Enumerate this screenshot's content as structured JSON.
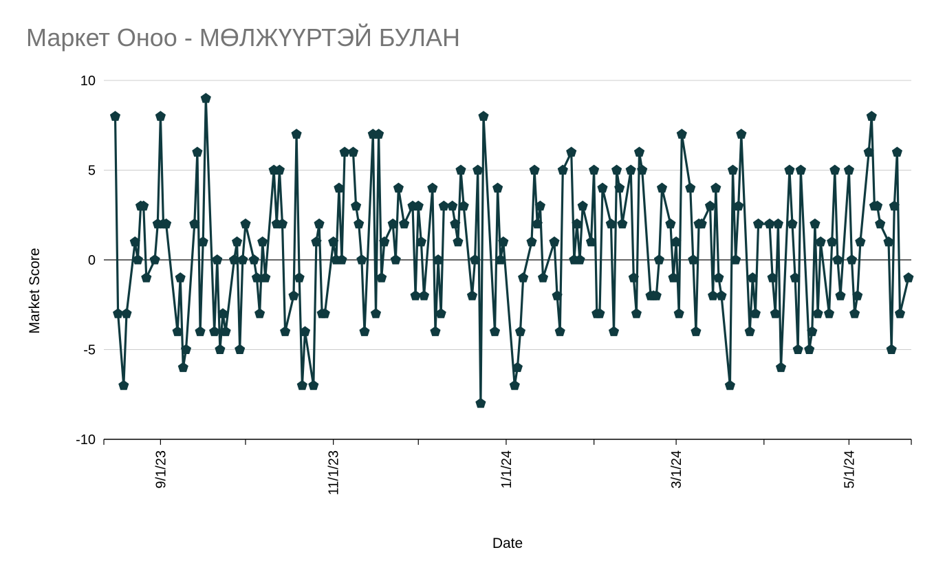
{
  "chart_data": {
    "type": "line",
    "title": "Маркет Оноо - МӨЛЖҮҮРТЭЙ БУЛАН",
    "xlabel": "Date",
    "ylabel": "Market Score",
    "ylim": [
      -10,
      10
    ],
    "xlim": [
      "2023-08-12",
      "2024-05-23"
    ],
    "yticks": [
      10,
      5,
      0,
      -5,
      -10
    ],
    "ytick_labels": [
      "10",
      "5",
      "0",
      "-5",
      "-10"
    ],
    "xticks": [
      {
        "date": "2023-09-01",
        "label": "9/1/23"
      },
      {
        "date": "2023-11-01",
        "label": "11/1/23"
      },
      {
        "date": "2024-01-01",
        "label": "1/1/24"
      },
      {
        "date": "2024-03-01",
        "label": "3/1/24"
      },
      {
        "date": "2024-05-01",
        "label": "5/1/24"
      }
    ],
    "x_minor_ticks": [
      "2023-10-01",
      "2023-12-01",
      "2024-02-01",
      "2024-04-01"
    ],
    "grid": true,
    "legend": "none",
    "line_color": "#0f3a3f",
    "marker": "pentagon",
    "series": [
      {
        "points": [
          [
            "2023-08-16",
            8
          ],
          [
            "2023-08-17",
            -3
          ],
          [
            "2023-08-19",
            -7
          ],
          [
            "2023-08-20",
            -3
          ],
          [
            "2023-08-23",
            1
          ],
          [
            "2023-08-24",
            0
          ],
          [
            "2023-08-25",
            3
          ],
          [
            "2023-08-26",
            3
          ],
          [
            "2023-08-27",
            -1
          ],
          [
            "2023-08-30",
            0
          ],
          [
            "2023-08-31",
            2
          ],
          [
            "2023-09-01",
            8
          ],
          [
            "2023-09-02",
            2
          ],
          [
            "2023-09-03",
            2
          ],
          [
            "2023-09-07",
            -4
          ],
          [
            "2023-09-08",
            -1
          ],
          [
            "2023-09-09",
            -6
          ],
          [
            "2023-09-10",
            -5
          ],
          [
            "2023-09-13",
            2
          ],
          [
            "2023-09-14",
            6
          ],
          [
            "2023-09-15",
            -4
          ],
          [
            "2023-09-16",
            1
          ],
          [
            "2023-09-17",
            9
          ],
          [
            "2023-09-20",
            -4
          ],
          [
            "2023-09-21",
            0
          ],
          [
            "2023-09-22",
            -5
          ],
          [
            "2023-09-23",
            -3
          ],
          [
            "2023-09-24",
            -4
          ],
          [
            "2023-09-27",
            0
          ],
          [
            "2023-09-28",
            1
          ],
          [
            "2023-09-29",
            -5
          ],
          [
            "2023-09-30",
            0
          ],
          [
            "2023-10-01",
            2
          ],
          [
            "2023-10-04",
            0
          ],
          [
            "2023-10-05",
            -1
          ],
          [
            "2023-10-06",
            -3
          ],
          [
            "2023-10-07",
            1
          ],
          [
            "2023-10-08",
            -1
          ],
          [
            "2023-10-11",
            5
          ],
          [
            "2023-10-12",
            2
          ],
          [
            "2023-10-13",
            5
          ],
          [
            "2023-10-14",
            2
          ],
          [
            "2023-10-15",
            -4
          ],
          [
            "2023-10-18",
            -2
          ],
          [
            "2023-10-19",
            7
          ],
          [
            "2023-10-20",
            -1
          ],
          [
            "2023-10-21",
            -7
          ],
          [
            "2023-10-22",
            -4
          ],
          [
            "2023-10-25",
            -7
          ],
          [
            "2023-10-26",
            1
          ],
          [
            "2023-10-27",
            2
          ],
          [
            "2023-10-28",
            -3
          ],
          [
            "2023-10-29",
            -3
          ],
          [
            "2023-11-01",
            1
          ],
          [
            "2023-11-02",
            0
          ],
          [
            "2023-11-03",
            4
          ],
          [
            "2023-11-04",
            0
          ],
          [
            "2023-11-05",
            6
          ],
          [
            "2023-11-08",
            6
          ],
          [
            "2023-11-09",
            3
          ],
          [
            "2023-11-10",
            2
          ],
          [
            "2023-11-11",
            0
          ],
          [
            "2023-11-12",
            -4
          ],
          [
            "2023-11-15",
            7
          ],
          [
            "2023-11-16",
            -3
          ],
          [
            "2023-11-17",
            7
          ],
          [
            "2023-11-18",
            -1
          ],
          [
            "2023-11-19",
            1
          ],
          [
            "2023-11-22",
            2
          ],
          [
            "2023-11-23",
            0
          ],
          [
            "2023-11-24",
            4
          ],
          [
            "2023-11-26",
            2
          ],
          [
            "2023-11-29",
            3
          ],
          [
            "2023-11-30",
            -2
          ],
          [
            "2023-12-01",
            3
          ],
          [
            "2023-12-02",
            1
          ],
          [
            "2023-12-03",
            -2
          ],
          [
            "2023-12-06",
            4
          ],
          [
            "2023-12-07",
            -4
          ],
          [
            "2023-12-08",
            0
          ],
          [
            "2023-12-09",
            -3
          ],
          [
            "2023-12-10",
            3
          ],
          [
            "2023-12-13",
            3
          ],
          [
            "2023-12-14",
            2
          ],
          [
            "2023-12-15",
            1
          ],
          [
            "2023-12-16",
            5
          ],
          [
            "2023-12-17",
            3
          ],
          [
            "2023-12-20",
            -2
          ],
          [
            "2023-12-21",
            0
          ],
          [
            "2023-12-22",
            5
          ],
          [
            "2023-12-23",
            -8
          ],
          [
            "2023-12-24",
            8
          ],
          [
            "2023-12-28",
            -4
          ],
          [
            "2023-12-29",
            4
          ],
          [
            "2023-12-30",
            0
          ],
          [
            "2023-12-31",
            1
          ],
          [
            "2024-01-04",
            -7
          ],
          [
            "2024-01-05",
            -6
          ],
          [
            "2024-01-06",
            -4
          ],
          [
            "2024-01-07",
            -1
          ],
          [
            "2024-01-10",
            1
          ],
          [
            "2024-01-11",
            5
          ],
          [
            "2024-01-12",
            2
          ],
          [
            "2024-01-13",
            3
          ],
          [
            "2024-01-14",
            -1
          ],
          [
            "2024-01-18",
            1
          ],
          [
            "2024-01-19",
            -2
          ],
          [
            "2024-01-20",
            -4
          ],
          [
            "2024-01-21",
            5
          ],
          [
            "2024-01-24",
            6
          ],
          [
            "2024-01-25",
            0
          ],
          [
            "2024-01-26",
            2
          ],
          [
            "2024-01-27",
            0
          ],
          [
            "2024-01-28",
            3
          ],
          [
            "2024-01-31",
            1
          ],
          [
            "2024-02-01",
            5
          ],
          [
            "2024-02-02",
            -3
          ],
          [
            "2024-02-03",
            -3
          ],
          [
            "2024-02-04",
            4
          ],
          [
            "2024-02-07",
            2
          ],
          [
            "2024-02-08",
            -4
          ],
          [
            "2024-02-09",
            5
          ],
          [
            "2024-02-10",
            4
          ],
          [
            "2024-02-11",
            2
          ],
          [
            "2024-02-14",
            5
          ],
          [
            "2024-02-15",
            -1
          ],
          [
            "2024-02-16",
            -3
          ],
          [
            "2024-02-17",
            6
          ],
          [
            "2024-02-18",
            5
          ],
          [
            "2024-02-21",
            -2
          ],
          [
            "2024-02-22",
            -2
          ],
          [
            "2024-02-23",
            -2
          ],
          [
            "2024-02-24",
            0
          ],
          [
            "2024-02-25",
            4
          ],
          [
            "2024-02-28",
            2
          ],
          [
            "2024-02-29",
            -1
          ],
          [
            "2024-03-01",
            1
          ],
          [
            "2024-03-02",
            -3
          ],
          [
            "2024-03-03",
            7
          ],
          [
            "2024-03-06",
            4
          ],
          [
            "2024-03-07",
            0
          ],
          [
            "2024-03-08",
            -4
          ],
          [
            "2024-03-09",
            2
          ],
          [
            "2024-03-10",
            2
          ],
          [
            "2024-03-13",
            3
          ],
          [
            "2024-03-14",
            -2
          ],
          [
            "2024-03-15",
            4
          ],
          [
            "2024-03-16",
            -1
          ],
          [
            "2024-03-17",
            -2
          ],
          [
            "2024-03-20",
            -7
          ],
          [
            "2024-03-21",
            5
          ],
          [
            "2024-03-22",
            0
          ],
          [
            "2024-03-23",
            3
          ],
          [
            "2024-03-24",
            7
          ],
          [
            "2024-03-27",
            -4
          ],
          [
            "2024-03-28",
            -1
          ],
          [
            "2024-03-29",
            -3
          ],
          [
            "2024-03-30",
            2
          ],
          [
            "2024-04-03",
            2
          ],
          [
            "2024-04-04",
            -1
          ],
          [
            "2024-04-05",
            -3
          ],
          [
            "2024-04-06",
            2
          ],
          [
            "2024-04-07",
            -6
          ],
          [
            "2024-04-10",
            5
          ],
          [
            "2024-04-11",
            2
          ],
          [
            "2024-04-12",
            -1
          ],
          [
            "2024-04-13",
            -5
          ],
          [
            "2024-04-14",
            5
          ],
          [
            "2024-04-17",
            -5
          ],
          [
            "2024-04-18",
            -4
          ],
          [
            "2024-04-19",
            2
          ],
          [
            "2024-04-20",
            -3
          ],
          [
            "2024-04-21",
            1
          ],
          [
            "2024-04-24",
            -3
          ],
          [
            "2024-04-25",
            1
          ],
          [
            "2024-04-26",
            5
          ],
          [
            "2024-04-27",
            0
          ],
          [
            "2024-04-28",
            -2
          ],
          [
            "2024-05-01",
            5
          ],
          [
            "2024-05-02",
            0
          ],
          [
            "2024-05-03",
            -3
          ],
          [
            "2024-05-04",
            -2
          ],
          [
            "2024-05-05",
            1
          ],
          [
            "2024-05-08",
            6
          ],
          [
            "2024-05-09",
            8
          ],
          [
            "2024-05-10",
            3
          ],
          [
            "2024-05-11",
            3
          ],
          [
            "2024-05-12",
            2
          ],
          [
            "2024-05-15",
            1
          ],
          [
            "2024-05-16",
            -5
          ],
          [
            "2024-05-17",
            3
          ],
          [
            "2024-05-18",
            6
          ],
          [
            "2024-05-19",
            -3
          ],
          [
            "2024-05-22",
            -1
          ]
        ]
      }
    ]
  }
}
